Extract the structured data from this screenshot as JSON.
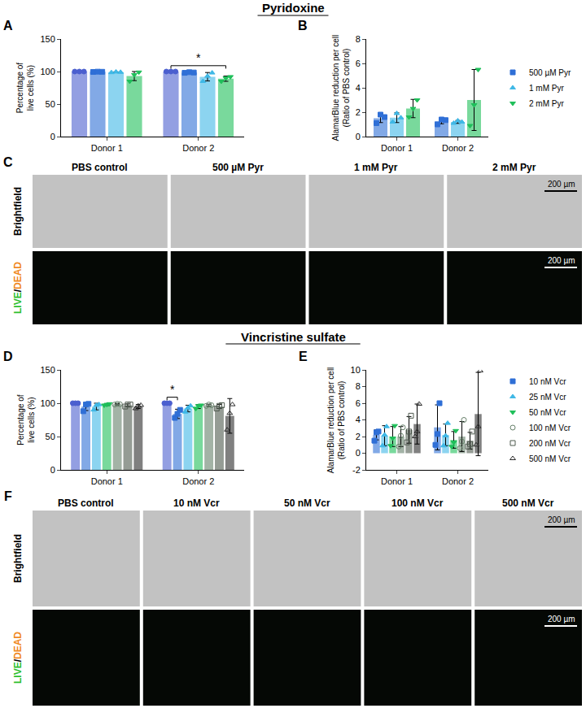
{
  "section_titles": [
    "Pyridoxine",
    "Vincristine sulfate"
  ],
  "chart_data": [
    {
      "panel": "A",
      "type": "bar",
      "ylabel": "Percentage of live cells (%)",
      "categories": [
        "Donor 1",
        "Donor 2"
      ],
      "ylim": [
        0,
        150
      ],
      "yticks": [
        0,
        50,
        100,
        150
      ],
      "grid": false,
      "series": [
        {
          "name": "PBS control",
          "color": "#4b5fcf",
          "marker": "circle",
          "values": [
            100,
            100
          ],
          "errors": [
            0,
            0
          ],
          "points": [
            [
              100,
              100,
              100
            ],
            [
              100,
              100,
              100
            ]
          ]
        },
        {
          "name": "500 µM Pyr",
          "color": "#2f6fd6",
          "marker": "square",
          "values": [
            99.6,
            98.5
          ],
          "errors": [
            0.3,
            0.5
          ],
          "points": [
            [
              99.4,
              99.8,
              99.6
            ],
            [
              98,
              99,
              98.5
            ]
          ]
        },
        {
          "name": "1 mM Pyr",
          "color": "#3fb8e6",
          "marker": "triangle-up",
          "values": [
            99,
            92
          ],
          "errors": [
            0.5,
            6.5
          ],
          "points": [
            [
              98.5,
              99.5,
              99
            ],
            [
              85,
              93,
              98
            ]
          ]
        },
        {
          "name": "2 mM Pyr",
          "color": "#1fbf5a",
          "marker": "triangle-down",
          "values": [
            93,
            89
          ],
          "errors": [
            7,
            4
          ],
          "points": [
            [
              85,
              95,
              99
            ],
            [
              85,
              90,
              92
            ]
          ]
        }
      ],
      "significance": [
        {
          "category": "Donor 2",
          "from": "PBS control",
          "to": "2 mM Pyr",
          "label": "*"
        }
      ]
    },
    {
      "panel": "B",
      "type": "bar",
      "ylabel": "AlamarBlue reduction per cell (Ratio of PBS control)",
      "categories": [
        "Donor 1",
        "Donor 2"
      ],
      "ylim": [
        0,
        8
      ],
      "yticks": [
        0,
        2,
        4,
        6,
        8
      ],
      "grid": false,
      "legend": "right",
      "series": [
        {
          "name": "500 µM Pyr",
          "color": "#2f6fd6",
          "marker": "square",
          "values": [
            1.5,
            1.25
          ],
          "errors": [
            0.35,
            0.2
          ],
          "points": [
            [
              1.1,
              1.8,
              1.6
            ],
            [
              1.0,
              1.4,
              1.35
            ]
          ]
        },
        {
          "name": "1 mM Pyr",
          "color": "#3fb8e6",
          "marker": "triangle-up",
          "values": [
            1.55,
            1.2
          ],
          "errors": [
            0.4,
            0.12
          ],
          "points": [
            [
              1.2,
              1.9,
              1.55
            ],
            [
              1.1,
              1.3,
              1.2
            ]
          ]
        },
        {
          "name": "2 mM Pyr",
          "color": "#1fbf5a",
          "marker": "triangle-down",
          "values": [
            2.3,
            3.0
          ],
          "errors": [
            0.75,
            2.5
          ],
          "points": [
            [
              1.6,
              2.3,
              3.0
            ],
            [
              0.9,
              2.6,
              5.5
            ]
          ]
        }
      ]
    },
    {
      "panel": "D",
      "type": "bar",
      "ylabel": "Percentage of live cells (%)",
      "categories": [
        "Donor 1",
        "Donor 2"
      ],
      "ylim": [
        0,
        150
      ],
      "yticks": [
        0,
        50,
        100,
        150
      ],
      "grid": false,
      "series": [
        {
          "name": "PBS control",
          "color": "#4b5fcf",
          "marker": "circle",
          "values": [
            100,
            100
          ],
          "errors": [
            0,
            0
          ],
          "points": [
            [
              100,
              100,
              100
            ],
            [
              100,
              100,
              100
            ]
          ]
        },
        {
          "name": "10 nM Vcr",
          "color": "#2f6fd6",
          "marker": "square",
          "values": [
            95,
            84
          ],
          "errors": [
            6,
            7
          ],
          "points": [
            [
              88,
              98,
              99
            ],
            [
              78,
              84,
              90
            ]
          ]
        },
        {
          "name": "25 nM Vcr",
          "color": "#3fb8e6",
          "marker": "triangle-up",
          "values": [
            95,
            92
          ],
          "errors": [
            5,
            5
          ],
          "points": [
            [
              90,
              97,
              98
            ],
            [
              87,
              93,
              96
            ]
          ]
        },
        {
          "name": "50 nM Vcr",
          "color": "#1fbf5a",
          "marker": "triangle-down",
          "values": [
            98,
            95
          ],
          "errors": [
            1.5,
            3
          ],
          "points": [
            [
              97,
              98,
              99
            ],
            [
              92,
              96,
              97
            ]
          ]
        },
        {
          "name": "100 nM Vcr",
          "color": "#66806a",
          "marker": "circle-open",
          "values": [
            98.5,
            97
          ],
          "errors": [
            1,
            1.5
          ],
          "points": [
            [
              98,
              99,
              98.5
            ],
            [
              96,
              98,
              97
            ]
          ]
        },
        {
          "name": "200 nM Vcr",
          "color": "#4f5a4f",
          "marker": "square-open",
          "values": [
            97,
            95
          ],
          "errors": [
            2,
            3
          ],
          "points": [
            [
              95,
              98,
              98
            ],
            [
              92,
              96,
              97
            ]
          ]
        },
        {
          "name": "500 nM Vcr",
          "color": "#2b2b2b",
          "marker": "triangle-up-open",
          "values": [
            95,
            81
          ],
          "errors": [
            3,
            26
          ],
          "points": [
            [
              92,
              96,
              97
            ],
            [
              60,
              85,
              98
            ]
          ]
        }
      ],
      "significance": [
        {
          "category": "Donor 2",
          "from": "PBS control",
          "to": "10 nM Vcr",
          "label": "*"
        }
      ]
    },
    {
      "panel": "E",
      "type": "bar",
      "ylabel": "AlamarBlue reduction per cell (Ratio of PBS control)",
      "categories": [
        "Donor 1",
        "Donor 2"
      ],
      "ylim": [
        -2,
        10
      ],
      "yticks": [
        -2,
        0,
        2,
        4,
        6,
        8,
        10
      ],
      "grid": false,
      "legend": "right",
      "series": [
        {
          "name": "10 nM Vcr",
          "color": "#2f6fd6",
          "marker": "square",
          "values": [
            2.2,
            3.1
          ],
          "errors": [
            0.6,
            2.7
          ],
          "points": [
            [
              1.5,
              2.5,
              2.6
            ],
            [
              1.0,
              2.3,
              6.0
            ]
          ]
        },
        {
          "name": "25 nM Vcr",
          "color": "#3fb8e6",
          "marker": "triangle-up",
          "values": [
            2.1,
            2.2
          ],
          "errors": [
            1.2,
            1.3
          ],
          "points": [
            [
              0.9,
              2.2,
              3.2
            ],
            [
              0.9,
              2.1,
              3.6
            ]
          ]
        },
        {
          "name": "50 nM Vcr",
          "color": "#1fbf5a",
          "marker": "triangle-down",
          "values": [
            2.0,
            1.6
          ],
          "errors": [
            1.2,
            1.0
          ],
          "points": [
            [
              0.9,
              1.8,
              3.3
            ],
            [
              0.8,
              1.3,
              2.7
            ]
          ]
        },
        {
          "name": "100 nM Vcr",
          "color": "#66806a",
          "marker": "circle-open",
          "values": [
            2.0,
            2.0
          ],
          "errors": [
            1.2,
            1.8
          ],
          "points": [
            [
              0.8,
              2.1,
              3.1
            ],
            [
              0.6,
              1.4,
              4.0
            ]
          ]
        },
        {
          "name": "200 nM Vcr",
          "color": "#4f5a4f",
          "marker": "square-open",
          "values": [
            2.8,
            1.5
          ],
          "errors": [
            1.6,
            1.0
          ],
          "points": [
            [
              1.3,
              2.6,
              4.5
            ],
            [
              0.8,
              1.1,
              2.6
            ]
          ]
        },
        {
          "name": "500 nM Vcr",
          "color": "#2b2b2b",
          "marker": "triangle-up-open",
          "values": [
            3.5,
            4.7
          ],
          "errors": [
            2.4,
            5.0
          ],
          "points": [
            [
              2.0,
              2.6,
              5.9
            ],
            [
              1.0,
              3.2,
              9.9
            ]
          ]
        }
      ]
    }
  ],
  "image_panels": [
    {
      "panel": "C",
      "columns": [
        "PBS control",
        "500 µM Pyr",
        "1 mM Pyr",
        "2 mM Pyr"
      ],
      "rows": [
        "Brightfield",
        "LIVE/DEAD"
      ],
      "scale_bar": "200 µm"
    },
    {
      "panel": "F",
      "columns": [
        "PBS control",
        "10 nM Vcr",
        "50 nM Vcr",
        "100 nM Vcr",
        "500 nM Vcr"
      ],
      "rows": [
        "Brightfield",
        "LIVE/DEAD"
      ],
      "scale_bar": "200 µm"
    }
  ]
}
